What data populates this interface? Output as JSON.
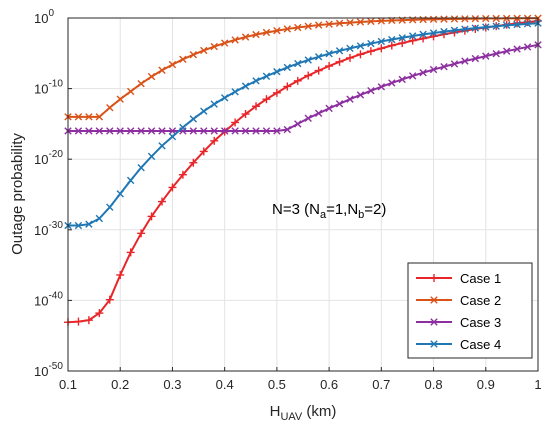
{
  "chart_data": {
    "type": "line",
    "title": "",
    "xlabel": {
      "main": "H",
      "sub": "UAV",
      "unit": " (km)"
    },
    "ylabel": "Outage probability",
    "xlim": [
      0.1,
      1.0
    ],
    "ylim_log10": [
      -50,
      0
    ],
    "yscale": "log",
    "grid": true,
    "legend_position": "bottom-right",
    "x_ticks": [
      "0.1",
      "0.2",
      "0.3",
      "0.4",
      "0.5",
      "0.6",
      "0.7",
      "0.8",
      "0.9",
      "1"
    ],
    "y_ticks": [
      {
        "base": "10",
        "exp": "0"
      },
      {
        "base": "10",
        "exp": "-10"
      },
      {
        "base": "10",
        "exp": "-20"
      },
      {
        "base": "10",
        "exp": "-30"
      },
      {
        "base": "10",
        "exp": "-40"
      },
      {
        "base": "10",
        "exp": "-50"
      }
    ],
    "annotation": {
      "prefix": "N=3 (N",
      "sub1": "a",
      "mid": "=1,N",
      "sub2": "b",
      "suffix": "=2)"
    },
    "x": [
      0.1,
      0.12,
      0.14,
      0.16,
      0.18,
      0.2,
      0.22,
      0.24,
      0.26,
      0.28,
      0.3,
      0.32,
      0.34,
      0.36,
      0.38,
      0.4,
      0.42,
      0.44,
      0.46,
      0.48,
      0.5,
      0.52,
      0.54,
      0.56,
      0.58,
      0.6,
      0.62,
      0.64,
      0.66,
      0.68,
      0.7,
      0.72,
      0.74,
      0.76,
      0.78,
      0.8,
      0.82,
      0.84,
      0.86,
      0.88,
      0.9,
      0.92,
      0.94,
      0.96,
      0.98,
      1.0
    ],
    "series": [
      {
        "name": "Case 1",
        "color": "#e8262a",
        "marker": "plus",
        "log10_values": [
          -43.1,
          -43.0,
          -42.8,
          -41.8,
          -39.9,
          -36.4,
          -33.2,
          -30.5,
          -28.1,
          -26.0,
          -24.0,
          -22.2,
          -20.5,
          -18.9,
          -17.4,
          -16.1,
          -14.8,
          -13.6,
          -12.5,
          -11.5,
          -10.6,
          -9.7,
          -8.9,
          -8.15,
          -7.45,
          -6.8,
          -6.2,
          -5.65,
          -5.15,
          -4.7,
          -4.3,
          -3.9,
          -3.55,
          -3.2,
          -2.9,
          -2.6,
          -2.3,
          -2.05,
          -1.8,
          -1.55,
          -1.35,
          -1.15,
          -0.95,
          -0.75,
          -0.58,
          -0.42
        ]
      },
      {
        "name": "Case 2",
        "color": "#d95319",
        "marker": "x",
        "log10_values": [
          -14.0,
          -14.0,
          -14.0,
          -14.0,
          -12.7,
          -11.5,
          -10.4,
          -9.3,
          -8.3,
          -7.4,
          -6.6,
          -5.85,
          -5.2,
          -4.6,
          -4.05,
          -3.55,
          -3.1,
          -2.7,
          -2.35,
          -2.05,
          -1.8,
          -1.55,
          -1.35,
          -1.17,
          -1.0,
          -0.87,
          -0.75,
          -0.65,
          -0.56,
          -0.48,
          -0.41,
          -0.35,
          -0.3,
          -0.26,
          -0.22,
          -0.19,
          -0.16,
          -0.14,
          -0.12,
          -0.1,
          -0.08,
          -0.07,
          -0.06,
          -0.05,
          -0.04,
          -0.03
        ]
      },
      {
        "name": "Case 3",
        "color": "#8d2fa0",
        "marker": "x",
        "log10_values": [
          -16.0,
          -16.0,
          -16.0,
          -16.0,
          -16.0,
          -16.0,
          -16.0,
          -16.0,
          -16.0,
          -16.0,
          -16.0,
          -16.0,
          -16.0,
          -16.0,
          -16.0,
          -16.0,
          -16.0,
          -16.0,
          -16.0,
          -16.0,
          -16.0,
          -15.8,
          -15.0,
          -14.2,
          -13.5,
          -12.8,
          -12.15,
          -11.5,
          -10.9,
          -10.3,
          -9.75,
          -9.2,
          -8.7,
          -8.2,
          -7.75,
          -7.3,
          -6.9,
          -6.5,
          -6.1,
          -5.75,
          -5.4,
          -5.05,
          -4.7,
          -4.4,
          -4.1,
          -3.8
        ]
      },
      {
        "name": "Case 4",
        "color": "#1f77b4",
        "marker": "x",
        "log10_values": [
          -29.4,
          -29.4,
          -29.2,
          -28.4,
          -26.8,
          -24.9,
          -23.0,
          -21.2,
          -19.6,
          -18.1,
          -16.8,
          -15.5,
          -14.3,
          -13.2,
          -12.2,
          -11.3,
          -10.45,
          -9.65,
          -8.9,
          -8.25,
          -7.6,
          -7.0,
          -6.45,
          -5.95,
          -5.5,
          -5.05,
          -4.65,
          -4.3,
          -3.95,
          -3.62,
          -3.32,
          -3.05,
          -2.8,
          -2.55,
          -2.32,
          -2.12,
          -1.93,
          -1.75,
          -1.58,
          -1.43,
          -1.29,
          -1.16,
          -1.04,
          -0.93,
          -0.83,
          -0.74
        ]
      }
    ]
  }
}
